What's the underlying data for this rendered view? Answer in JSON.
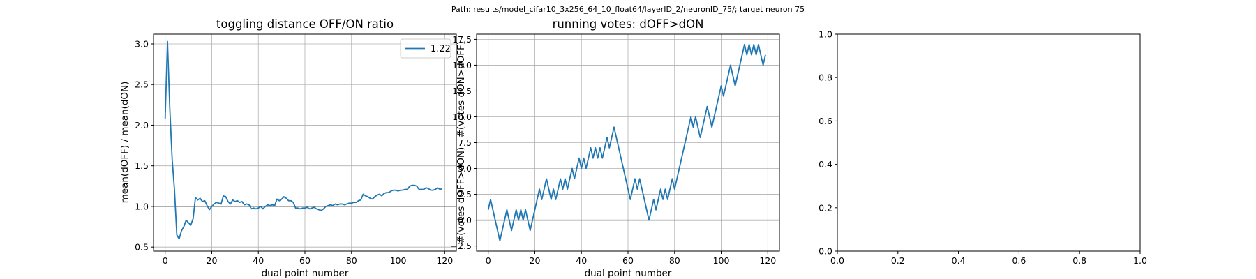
{
  "figure": {
    "suptitle": "Path: results/model_cifar10_3x256_64_10_float64/layerID_2/neuronID_75/; target neuron 75"
  },
  "colors": {
    "line": "#1f77b4",
    "reference_line": "#7f7f7f",
    "grid": "#b0b0b0",
    "axes": "#000000"
  },
  "chart_data": [
    {
      "type": "line",
      "title": "toggling distance OFF/ON ratio",
      "xlabel": "dual point number",
      "ylabel": "mean(dOFF) / mean(dON)",
      "xlim": [
        -5,
        125
      ],
      "ylim": [
        0.45,
        3.12
      ],
      "xticks": [
        0,
        20,
        40,
        60,
        80,
        100,
        120
      ],
      "xtick_labels": [
        "0",
        "20",
        "40",
        "60",
        "80",
        "100",
        "120"
      ],
      "yticks": [
        0.5,
        1.0,
        1.5,
        2.0,
        2.5,
        3.0
      ],
      "ytick_labels": [
        "0.5",
        "1.0",
        "1.5",
        "2.0",
        "2.5",
        "3.0"
      ],
      "grid": true,
      "legend": {
        "location": "upper right",
        "entries": [
          "1.22"
        ]
      },
      "reference_y": 1.0,
      "series": [
        {
          "name": "1.22",
          "x": [
            0,
            1,
            2,
            3,
            4,
            5,
            6,
            7,
            8,
            9,
            10,
            11,
            12,
            13,
            14,
            15,
            16,
            17,
            18,
            19,
            20,
            21,
            22,
            23,
            24,
            25,
            26,
            27,
            28,
            29,
            30,
            31,
            32,
            33,
            34,
            35,
            36,
            37,
            38,
            39,
            40,
            41,
            42,
            43,
            44,
            45,
            46,
            47,
            48,
            49,
            50,
            51,
            52,
            53,
            54,
            55,
            56,
            57,
            58,
            59,
            60,
            61,
            62,
            63,
            64,
            65,
            66,
            67,
            68,
            69,
            70,
            71,
            72,
            73,
            74,
            75,
            76,
            77,
            78,
            79,
            80,
            81,
            82,
            83,
            84,
            85,
            86,
            87,
            88,
            89,
            90,
            91,
            92,
            93,
            94,
            95,
            96,
            97,
            98,
            99,
            100,
            101,
            102,
            103,
            104,
            105,
            106,
            107,
            108,
            109,
            110,
            111,
            112,
            113,
            114,
            115,
            116,
            117,
            118,
            119
          ],
          "values": [
            2.08,
            3.03,
            2.2,
            1.58,
            1.2,
            0.65,
            0.6,
            0.7,
            0.75,
            0.83,
            0.8,
            0.77,
            0.85,
            1.11,
            1.08,
            1.1,
            1.06,
            1.07,
            1.01,
            0.96,
            1.0,
            1.03,
            1.05,
            1.04,
            1.03,
            1.13,
            1.12,
            1.06,
            1.03,
            1.08,
            1.06,
            1.07,
            1.05,
            1.06,
            1.02,
            1.03,
            1.02,
            0.97,
            0.98,
            0.97,
            0.98,
            1.0,
            0.97,
            1.0,
            1.02,
            1.01,
            1.02,
            1.01,
            1.09,
            1.07,
            1.09,
            1.12,
            1.1,
            1.07,
            1.07,
            1.05,
            0.98,
            0.98,
            0.97,
            0.98,
            0.98,
            0.99,
            0.97,
            0.98,
            0.99,
            0.97,
            0.96,
            0.95,
            0.97,
            1.0,
            1.01,
            1.02,
            1.01,
            1.03,
            1.02,
            1.03,
            1.03,
            1.02,
            1.03,
            1.04,
            1.04,
            1.05,
            1.05,
            1.07,
            1.08,
            1.15,
            1.13,
            1.12,
            1.1,
            1.09,
            1.12,
            1.14,
            1.15,
            1.13,
            1.16,
            1.17,
            1.17,
            1.19,
            1.2,
            1.2,
            1.19,
            1.2,
            1.2,
            1.21,
            1.21,
            1.25,
            1.26,
            1.26,
            1.25,
            1.21,
            1.21,
            1.21,
            1.23,
            1.22,
            1.2,
            1.2,
            1.21,
            1.23,
            1.21,
            1.22
          ]
        }
      ]
    },
    {
      "type": "line",
      "title": "running votes: dOFF>dON",
      "xlabel": "dual point number",
      "ylabel": "#(votes dOFF>dON) - #(votes dON>dOFF)",
      "xlim": [
        -5,
        125
      ],
      "ylim": [
        -3.0,
        18.0
      ],
      "xticks": [
        0,
        20,
        40,
        60,
        80,
        100,
        120
      ],
      "xtick_labels": [
        "0",
        "20",
        "40",
        "60",
        "80",
        "100",
        "120"
      ],
      "yticks": [
        -2.5,
        0.0,
        2.5,
        5.0,
        7.5,
        10.0,
        12.5,
        15.0,
        17.5
      ],
      "ytick_labels": [
        "−2.5",
        "0.0",
        "2.5",
        "5.0",
        "7.5",
        "10.0",
        "12.5",
        "15.0",
        "17.5"
      ],
      "grid": true,
      "reference_y": 0.0,
      "series": [
        {
          "x": [
            0,
            1,
            2,
            3,
            4,
            5,
            6,
            7,
            8,
            9,
            10,
            11,
            12,
            13,
            14,
            15,
            16,
            17,
            18,
            19,
            20,
            21,
            22,
            23,
            24,
            25,
            26,
            27,
            28,
            29,
            30,
            31,
            32,
            33,
            34,
            35,
            36,
            37,
            38,
            39,
            40,
            41,
            42,
            43,
            44,
            45,
            46,
            47,
            48,
            49,
            50,
            51,
            52,
            53,
            54,
            55,
            56,
            57,
            58,
            59,
            60,
            61,
            62,
            63,
            64,
            65,
            66,
            67,
            68,
            69,
            70,
            71,
            72,
            73,
            74,
            75,
            76,
            77,
            78,
            79,
            80,
            81,
            82,
            83,
            84,
            85,
            86,
            87,
            88,
            89,
            90,
            91,
            92,
            93,
            94,
            95,
            96,
            97,
            98,
            99,
            100,
            101,
            102,
            103,
            104,
            105,
            106,
            107,
            108,
            109,
            110,
            111,
            112,
            113,
            114,
            115,
            116,
            117,
            118,
            119
          ],
          "values": [
            1,
            2,
            1,
            0,
            -1,
            -2,
            -1,
            0,
            1,
            0,
            -1,
            0,
            1,
            0,
            1,
            0,
            1,
            0,
            -1,
            0,
            1,
            2,
            3,
            2,
            3,
            4,
            3,
            2,
            3,
            2,
            3,
            4,
            3,
            4,
            3,
            4,
            5,
            4,
            5,
            6,
            5,
            6,
            5,
            6,
            7,
            6,
            7,
            6,
            7,
            6,
            7,
            8,
            7,
            8,
            9,
            8,
            7,
            6,
            5,
            4,
            3,
            2,
            3,
            4,
            3,
            4,
            3,
            2,
            1,
            0,
            1,
            2,
            1,
            2,
            3,
            2,
            3,
            2,
            3,
            4,
            3,
            4,
            5,
            6,
            7,
            8,
            9,
            10,
            9,
            10,
            9,
            8,
            9,
            10,
            11,
            10,
            9,
            10,
            11,
            12,
            13,
            12,
            13,
            14,
            15,
            14,
            13,
            14,
            15,
            16,
            17,
            16,
            17,
            16,
            17,
            16,
            17,
            16,
            15,
            16
          ]
        }
      ]
    },
    {
      "type": "line",
      "title": "",
      "xlim": [
        0,
        1
      ],
      "ylim": [
        0,
        1
      ],
      "xticks": [
        0.0,
        0.2,
        0.4,
        0.6,
        0.8,
        1.0
      ],
      "xtick_labels": [
        "0.0",
        "0.2",
        "0.4",
        "0.6",
        "0.8",
        "1.0"
      ],
      "yticks": [
        0.0,
        0.2,
        0.4,
        0.6,
        0.8,
        1.0
      ],
      "ytick_labels": [
        "0.0",
        "0.2",
        "0.4",
        "0.6",
        "0.8",
        "1.0"
      ],
      "grid": false,
      "series": []
    }
  ]
}
